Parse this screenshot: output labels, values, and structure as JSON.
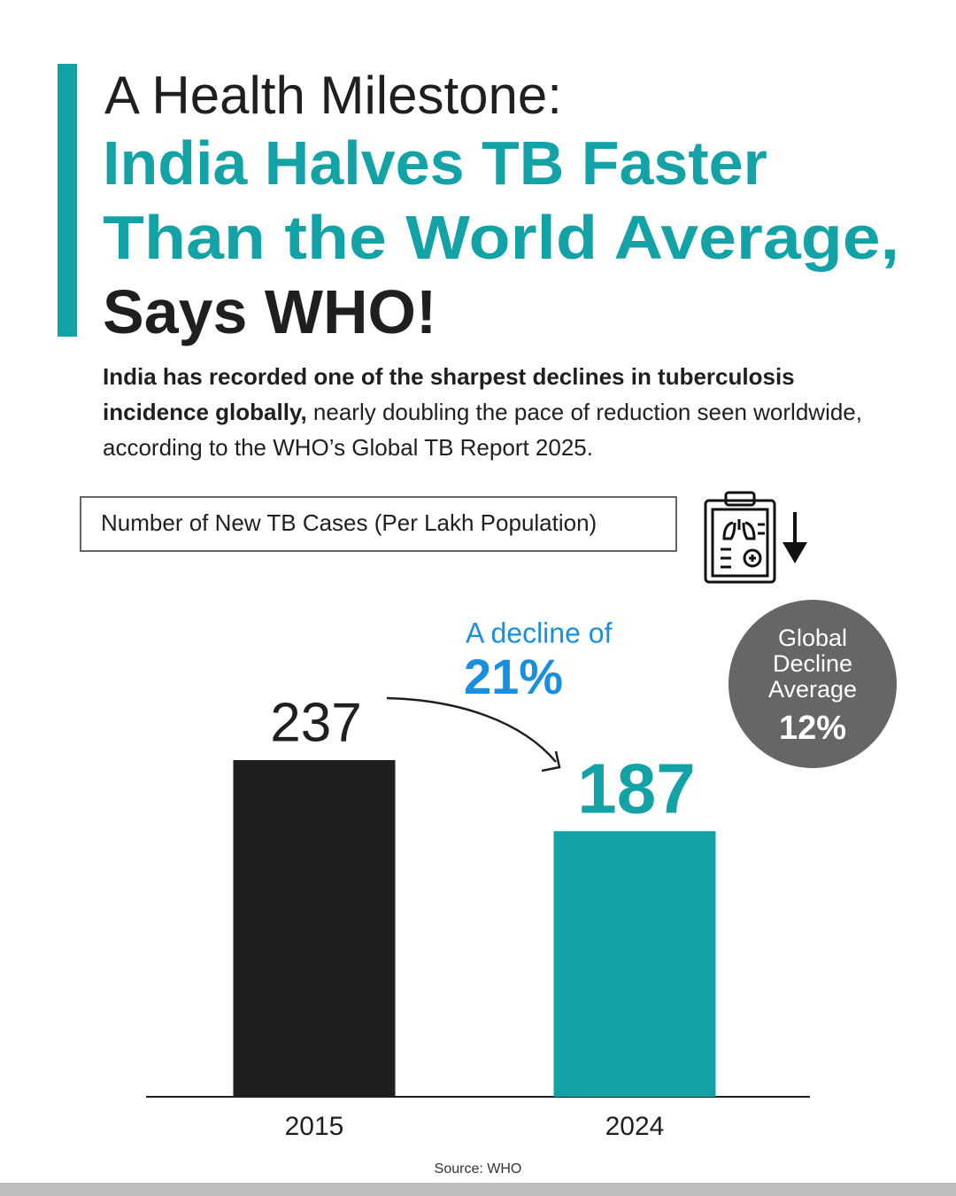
{
  "header": {
    "line1": "A Health Milestone:",
    "line2": "India Halves TB Faster",
    "line3": "Than the World Average,",
    "line4": "Says WHO!"
  },
  "intro": {
    "bold": "India has recorded one of the sharpest declines in tuberculosis incidence globally,",
    "rest": "nearly doubling the pace of reduction seen worldwide, according to the WHO’s Global TB Report 2025."
  },
  "chart_data": {
    "type": "bar",
    "title": "Number of New TB Cases (Per Lakh Population)",
    "categories": [
      "2015",
      "2024"
    ],
    "values": [
      237,
      187
    ],
    "colors": [
      "#1f1f1f",
      "#13a3a6"
    ],
    "annotations": {
      "decline_label": "A decline of",
      "decline_value": "21%",
      "global_label": [
        "Global",
        "Decline",
        "Average"
      ],
      "global_value": "12%"
    },
    "source": "Source: WHO"
  }
}
